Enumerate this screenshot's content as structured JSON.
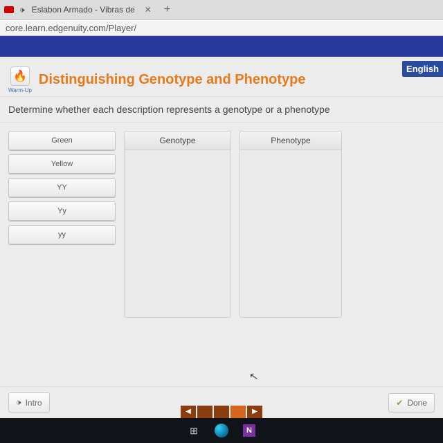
{
  "browser": {
    "tab_title": "Eslabon Armado - Vibras de",
    "url": "core.learn.edgenuity.com/Player/"
  },
  "language_badge": "English",
  "warmup_label": "Warm-Up",
  "page_title": "Distinguishing Genotype and Phenotype",
  "instruction": "Determine whether each description represents a genotype or a phenotype",
  "tiles": {
    "t1": "Green",
    "t2": "Yellow",
    "t3": "YY",
    "t4": "Yy",
    "t5": "yy"
  },
  "dropzones": {
    "genotype": "Genotype",
    "phenotype": "Phenotype"
  },
  "buttons": {
    "intro": "Intro",
    "done": "Done"
  }
}
